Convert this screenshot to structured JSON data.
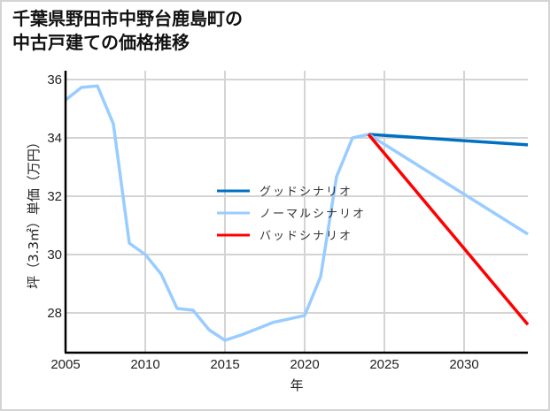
{
  "title": "千葉県野田市中野台鹿島町の\n中古戸建ての価格推移",
  "chart_data": {
    "type": "line",
    "title": "千葉県野田市中野台鹿島町の中古戸建ての価格推移",
    "xlabel": "年",
    "ylabel": "坪（3.3㎡）単価（万円）",
    "xlim": [
      2005,
      2034
    ],
    "ylim": [
      26.6,
      36.3
    ],
    "x_ticks": [
      2005,
      2010,
      2015,
      2020,
      2025,
      2030
    ],
    "y_ticks": [
      28,
      30,
      32,
      34,
      36
    ],
    "grid": true,
    "legend_position": "center",
    "series": [
      {
        "name": "ノーマルシナリオ (実績)",
        "color": "#99ccff",
        "x": [
          2005,
          2006,
          2007,
          2008,
          2009,
          2010,
          2011,
          2012,
          2013,
          2014,
          2015,
          2016,
          2017,
          2018,
          2019,
          2020,
          2021,
          2022,
          2023,
          2024
        ],
        "values": [
          35.3,
          35.73,
          35.78,
          34.48,
          30.39,
          30.0,
          29.33,
          28.15,
          28.09,
          27.42,
          27.06,
          27.24,
          27.45,
          27.67,
          27.79,
          27.91,
          29.24,
          32.67,
          34.0,
          34.12
        ]
      },
      {
        "name": "グッドシナリオ",
        "color": "#0070c0",
        "x": [
          2024,
          2034
        ],
        "values": [
          34.12,
          33.76
        ]
      },
      {
        "name": "ノーマルシナリオ",
        "color": "#99ccff",
        "x": [
          2024,
          2034
        ],
        "values": [
          34.12,
          30.7
        ]
      },
      {
        "name": "バッドシナリオ",
        "color": "#ff0000",
        "x": [
          2024,
          2034
        ],
        "values": [
          34.12,
          27.6
        ]
      }
    ],
    "legend": [
      {
        "label": "グッドシナリオ",
        "color": "#0070c0"
      },
      {
        "label": "ノーマルシナリオ",
        "color": "#99ccff"
      },
      {
        "label": "バッドシナリオ",
        "color": "#ff0000"
      }
    ]
  }
}
